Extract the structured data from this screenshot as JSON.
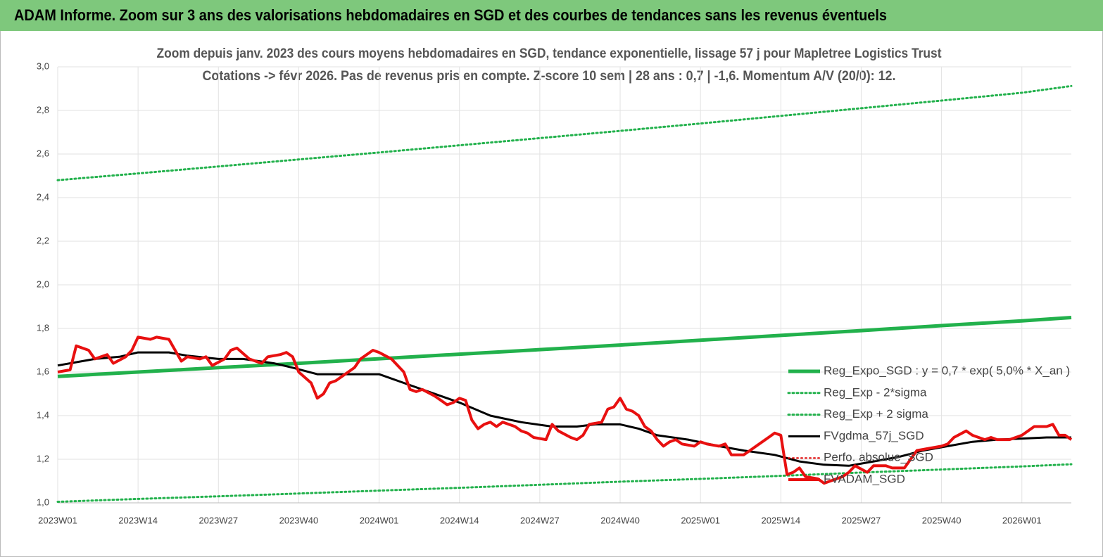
{
  "header": {
    "title": "ADAM Informe. Zoom sur 3 ans des valorisations hebdomadaires en SGD et des courbes de tendances sans les revenus éventuels"
  },
  "chart_data": {
    "type": "line",
    "title": "Zoom depuis janv.  2023 des cours moyens hebdomadaires en SGD, tendance exponentielle, lissage 57 j pour Mapletree Logistics Trust",
    "subtitle": "Cotations -> févr 2026.  Pas de revenus pris en compte. Z-score 10 sem  | 28 ans : 0,7  | -1,6. Momentum A/V (20/0): 12.",
    "xlim": [
      0,
      164
    ],
    "xticks": [
      {
        "value": 0,
        "label": "2023W01"
      },
      {
        "value": 13,
        "label": "2023W14"
      },
      {
        "value": 26,
        "label": "2023W27"
      },
      {
        "value": 39,
        "label": "2023W40"
      },
      {
        "value": 52,
        "label": "2024W01"
      },
      {
        "value": 65,
        "label": "2024W14"
      },
      {
        "value": 78,
        "label": "2024W27"
      },
      {
        "value": 91,
        "label": "2024W40"
      },
      {
        "value": 104,
        "label": "2025W01"
      },
      {
        "value": 117,
        "label": "2025W14"
      },
      {
        "value": 130,
        "label": "2025W27"
      },
      {
        "value": 143,
        "label": "2025W40"
      },
      {
        "value": 156,
        "label": "2026W01"
      }
    ],
    "ylim": [
      1.0,
      3.0
    ],
    "yticks": [
      {
        "value": 1.0,
        "label": "1,0"
      },
      {
        "value": 1.2,
        "label": "1,2"
      },
      {
        "value": 1.4,
        "label": "1,4"
      },
      {
        "value": 1.6,
        "label": "1,6"
      },
      {
        "value": 1.8,
        "label": "1,8"
      },
      {
        "value": 2.0,
        "label": "2,0"
      },
      {
        "value": 2.2,
        "label": "2,2"
      },
      {
        "value": 2.4,
        "label": "2,4"
      },
      {
        "value": 2.6,
        "label": "2,6"
      },
      {
        "value": 2.8,
        "label": "2,8"
      },
      {
        "value": 3.0,
        "label": "3,0"
      }
    ],
    "grid": true,
    "legend": "right",
    "series": [
      {
        "name": "Reg_Expo_SGD : y = 0,7 * exp( 5,0% *  X_an )",
        "color": "#22b14c",
        "line_style": "solid",
        "line_width": 5,
        "x": [
          0,
          13,
          26,
          39,
          52,
          65,
          78,
          91,
          104,
          117,
          130,
          143,
          156,
          164
        ],
        "values": [
          1.58,
          1.6,
          1.62,
          1.64,
          1.661,
          1.682,
          1.703,
          1.724,
          1.746,
          1.768,
          1.79,
          1.813,
          1.835,
          1.85
        ]
      },
      {
        "name": "Reg_Exp - 2*sigma",
        "color": "#22b14c",
        "line_style": "dotted",
        "line_width": 3,
        "x": [
          0,
          13,
          26,
          39,
          52,
          65,
          78,
          91,
          104,
          117,
          130,
          143,
          156,
          164
        ],
        "values": [
          1.005,
          1.018,
          1.03,
          1.043,
          1.056,
          1.069,
          1.083,
          1.097,
          1.11,
          1.124,
          1.139,
          1.153,
          1.167,
          1.177
        ]
      },
      {
        "name": "Reg_Exp + 2 sigma",
        "color": "#22b14c",
        "line_style": "dotted",
        "line_width": 3,
        "x": [
          0,
          13,
          26,
          39,
          52,
          65,
          78,
          91,
          104,
          117,
          130,
          143,
          156,
          164
        ],
        "values": [
          2.48,
          2.511,
          2.543,
          2.575,
          2.607,
          2.64,
          2.673,
          2.706,
          2.74,
          2.775,
          2.81,
          2.845,
          2.881,
          2.912
        ]
      },
      {
        "name": "FVgdma_57j_SGD",
        "color": "#000000",
        "line_style": "solid",
        "line_width": 3,
        "x": [
          0,
          6,
          10,
          13,
          18,
          21,
          26,
          30,
          35,
          38,
          42,
          46,
          52,
          56,
          60,
          65,
          70,
          75,
          80,
          84,
          87,
          91,
          94,
          97,
          102,
          107,
          111,
          116,
          120,
          124,
          128,
          132,
          136,
          140,
          144,
          148,
          152,
          156,
          160,
          164
        ],
        "values": [
          1.63,
          1.66,
          1.67,
          1.69,
          1.69,
          1.675,
          1.66,
          1.66,
          1.64,
          1.62,
          1.59,
          1.59,
          1.59,
          1.55,
          1.51,
          1.46,
          1.4,
          1.37,
          1.35,
          1.35,
          1.36,
          1.36,
          1.34,
          1.31,
          1.29,
          1.26,
          1.24,
          1.22,
          1.19,
          1.175,
          1.17,
          1.19,
          1.21,
          1.24,
          1.26,
          1.28,
          1.29,
          1.295,
          1.3,
          1.3
        ]
      },
      {
        "name": "Perfo. absolue_SGD",
        "color": "#e00000",
        "line_style": "dotted",
        "line_width": 2,
        "x": [],
        "values": []
      },
      {
        "name": "FVADAM_SGD",
        "color": "#e81010",
        "line_style": "solid",
        "line_width": 4,
        "x": [
          0,
          2,
          3,
          5,
          6,
          8,
          9,
          11,
          12,
          13,
          15,
          16,
          18,
          19,
          20,
          21,
          23,
          24,
          25,
          27,
          28,
          29,
          31,
          33,
          34,
          36,
          37,
          38,
          39,
          41,
          42,
          43,
          44,
          45,
          47,
          48,
          49,
          51,
          52,
          54,
          56,
          57,
          58,
          59,
          61,
          62,
          63,
          64,
          65,
          66,
          67,
          68,
          69,
          70,
          71,
          72,
          74,
          75,
          76,
          77,
          79,
          80,
          81,
          83,
          84,
          85,
          86,
          88,
          89,
          90,
          91,
          92,
          93,
          94,
          95,
          96,
          97,
          98,
          99,
          100,
          101,
          103,
          104,
          105,
          107,
          108,
          109,
          111,
          112,
          113,
          115,
          116,
          117,
          118,
          119,
          120,
          121,
          123,
          124,
          125,
          127,
          128,
          129,
          131,
          132,
          134,
          135,
          137,
          138,
          139,
          141,
          143,
          144,
          145,
          147,
          148,
          149,
          150,
          151,
          152,
          154,
          156,
          157,
          158,
          160,
          161,
          162,
          163,
          164
        ],
        "values": [
          1.6,
          1.61,
          1.72,
          1.7,
          1.66,
          1.68,
          1.64,
          1.67,
          1.7,
          1.76,
          1.75,
          1.76,
          1.75,
          1.7,
          1.65,
          1.67,
          1.66,
          1.67,
          1.63,
          1.66,
          1.7,
          1.71,
          1.66,
          1.64,
          1.67,
          1.68,
          1.69,
          1.67,
          1.6,
          1.55,
          1.48,
          1.5,
          1.55,
          1.56,
          1.6,
          1.62,
          1.66,
          1.7,
          1.69,
          1.66,
          1.6,
          1.52,
          1.51,
          1.52,
          1.49,
          1.47,
          1.45,
          1.46,
          1.48,
          1.47,
          1.38,
          1.34,
          1.36,
          1.37,
          1.35,
          1.37,
          1.35,
          1.33,
          1.32,
          1.3,
          1.29,
          1.36,
          1.33,
          1.3,
          1.29,
          1.31,
          1.36,
          1.37,
          1.43,
          1.44,
          1.48,
          1.43,
          1.42,
          1.4,
          1.35,
          1.33,
          1.29,
          1.26,
          1.28,
          1.29,
          1.27,
          1.26,
          1.28,
          1.27,
          1.26,
          1.27,
          1.22,
          1.22,
          1.24,
          1.26,
          1.3,
          1.32,
          1.31,
          1.13,
          1.14,
          1.16,
          1.12,
          1.11,
          1.09,
          1.1,
          1.12,
          1.14,
          1.17,
          1.14,
          1.17,
          1.17,
          1.16,
          1.16,
          1.2,
          1.24,
          1.25,
          1.26,
          1.27,
          1.3,
          1.33,
          1.31,
          1.3,
          1.29,
          1.3,
          1.29,
          1.29,
          1.31,
          1.33,
          1.35,
          1.35,
          1.36,
          1.31,
          1.31,
          1.29
        ]
      }
    ]
  }
}
